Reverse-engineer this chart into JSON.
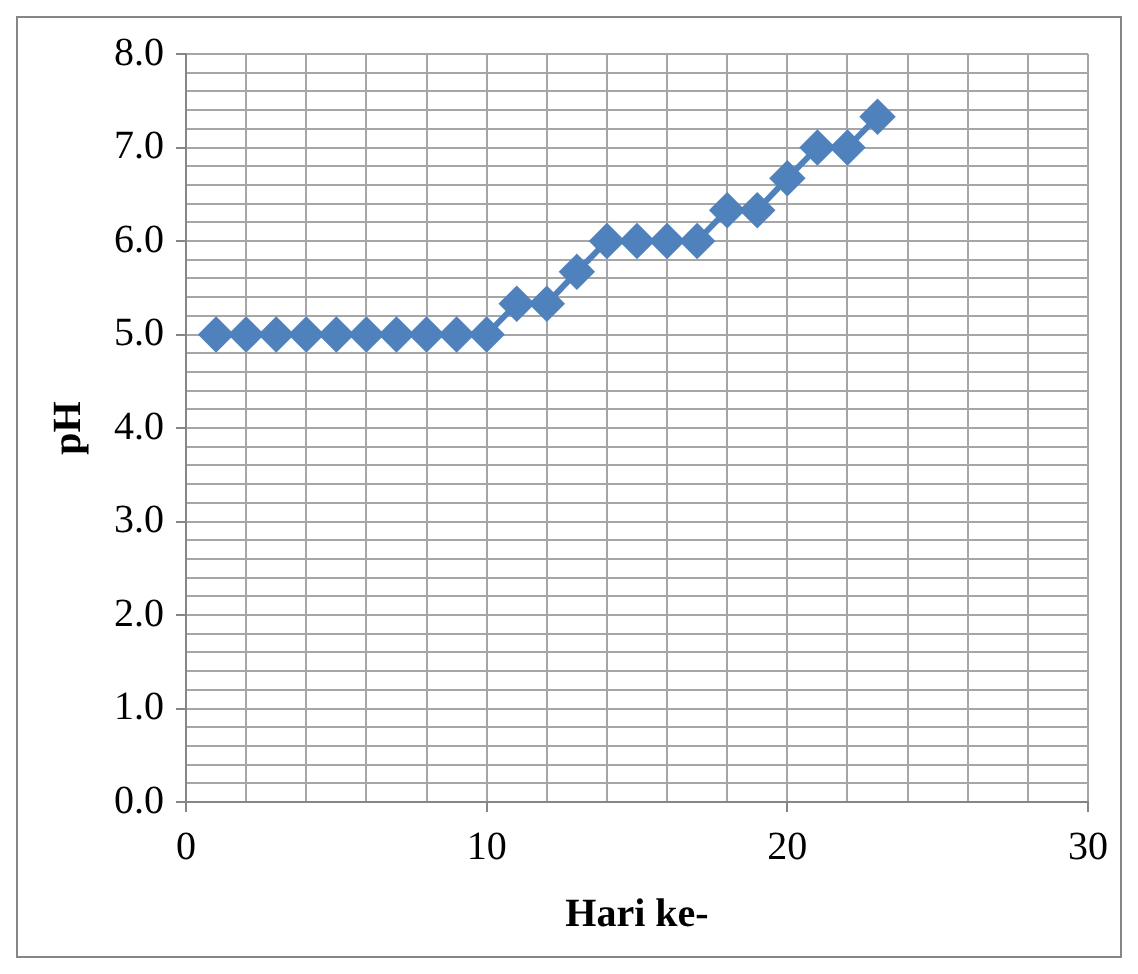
{
  "chart_data": {
    "type": "line",
    "xlabel": "Hari ke-",
    "ylabel": "pH",
    "marker": "diamond",
    "line_style": "solid",
    "grid": true,
    "legend": false,
    "xlim": [
      0,
      30
    ],
    "ylim": [
      0,
      8
    ],
    "xticks": [
      0,
      {
        "value": 2,
        "label": null
      },
      {
        "value": 4,
        "label": null
      },
      {
        "value": 6,
        "label": null
      },
      {
        "value": 8,
        "label": null
      },
      10,
      {
        "value": 12,
        "label": null
      },
      {
        "value": 14,
        "label": null
      },
      {
        "value": 16,
        "label": null
      },
      {
        "value": 18,
        "label": null
      },
      20,
      {
        "value": 22,
        "label": null
      },
      {
        "value": 24,
        "label": null
      },
      {
        "value": 26,
        "label": null
      },
      {
        "value": 28,
        "label": null
      },
      30
    ],
    "yticks": [
      {
        "value": 0,
        "label": "0.0"
      },
      {
        "value": 0.2,
        "label": null
      },
      {
        "value": 0.4,
        "label": null
      },
      {
        "value": 0.6,
        "label": null
      },
      {
        "value": 0.8,
        "label": null
      },
      {
        "value": 1,
        "label": "1.0"
      },
      {
        "value": 1.2,
        "label": null
      },
      {
        "value": 1.4,
        "label": null
      },
      {
        "value": 1.6,
        "label": null
      },
      {
        "value": 1.8,
        "label": null
      },
      {
        "value": 2,
        "label": "2.0"
      },
      {
        "value": 2.2,
        "label": null
      },
      {
        "value": 2.4,
        "label": null
      },
      {
        "value": 2.6,
        "label": null
      },
      {
        "value": 2.8,
        "label": null
      },
      {
        "value": 3,
        "label": "3.0"
      },
      {
        "value": 3.2,
        "label": null
      },
      {
        "value": 3.4,
        "label": null
      },
      {
        "value": 3.6,
        "label": null
      },
      {
        "value": 3.8,
        "label": null
      },
      {
        "value": 4,
        "label": "4.0"
      },
      {
        "value": 4.2,
        "label": null
      },
      {
        "value": 4.4,
        "label": null
      },
      {
        "value": 4.6,
        "label": null
      },
      {
        "value": 4.8,
        "label": null
      },
      {
        "value": 5,
        "label": "5.0"
      },
      {
        "value": 5.2,
        "label": null
      },
      {
        "value": 5.4,
        "label": null
      },
      {
        "value": 5.6,
        "label": null
      },
      {
        "value": 5.8,
        "label": null
      },
      {
        "value": 6,
        "label": "6.0"
      },
      {
        "value": 6.2,
        "label": null
      },
      {
        "value": 6.4,
        "label": null
      },
      {
        "value": 6.6,
        "label": null
      },
      {
        "value": 6.8,
        "label": null
      },
      {
        "value": 7,
        "label": "7.0"
      },
      {
        "value": 7.2,
        "label": null
      },
      {
        "value": 7.4,
        "label": null
      },
      {
        "value": 7.6,
        "label": null
      },
      {
        "value": 7.8,
        "label": null
      },
      {
        "value": 8,
        "label": "8.0"
      }
    ],
    "x": [
      1,
      2,
      3,
      4,
      5,
      6,
      7,
      8,
      9,
      10,
      11,
      12,
      13,
      14,
      15,
      16,
      17,
      18,
      19,
      20,
      21,
      22,
      23
    ],
    "series": [
      {
        "color": "#4f81bd",
        "values": [
          5,
          5,
          5,
          5,
          5,
          5,
          5,
          5,
          5,
          5,
          5.33,
          5.33,
          5.67,
          6,
          6,
          6,
          6,
          6.33,
          6.33,
          6.67,
          7,
          7,
          7.33
        ]
      }
    ]
  }
}
